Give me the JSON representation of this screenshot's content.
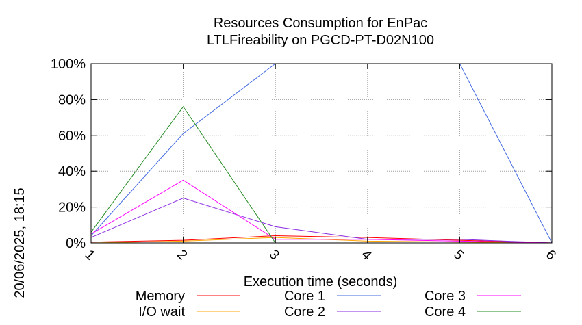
{
  "chart_data": {
    "type": "line",
    "title": "Resources Consumption for EnPac",
    "subtitle": "LTLFireability on PGCD-PT-D02N100",
    "xlabel": "Execution time (seconds)",
    "ylabel": "",
    "side_label": "20/06/2025, 18:15",
    "xlim": [
      1,
      6
    ],
    "ylim": [
      0,
      100
    ],
    "x_ticks": [
      "1",
      "2",
      "3",
      "4",
      "5",
      "6"
    ],
    "y_ticks": [
      "0%",
      "20%",
      "40%",
      "60%",
      "80%",
      "100%"
    ],
    "grid": true,
    "legend_position": "bottom",
    "x": [
      1,
      2,
      3,
      4,
      5,
      6
    ],
    "series": [
      {
        "name": "Memory",
        "color": "#ff0000",
        "values": [
          0.5,
          1.5,
          4,
          3,
          1.5,
          0
        ]
      },
      {
        "name": "I/O wait",
        "color": "#ffa500",
        "values": [
          0,
          1,
          3,
          1,
          0.5,
          0
        ]
      },
      {
        "name": "Core 1",
        "color": "#4169e1",
        "values": [
          4,
          61,
          100,
          100,
          100,
          0
        ]
      },
      {
        "name": "Core 2",
        "color": "#8a2be2",
        "values": [
          3,
          25,
          9,
          2,
          2,
          0
        ]
      },
      {
        "name": "Core 3",
        "color": "#ff00ff",
        "values": [
          5,
          35,
          2,
          2,
          1,
          0
        ]
      },
      {
        "name": "Core 4",
        "color": "#228b22",
        "values": [
          6,
          76,
          0,
          0,
          0,
          0
        ]
      }
    ]
  }
}
